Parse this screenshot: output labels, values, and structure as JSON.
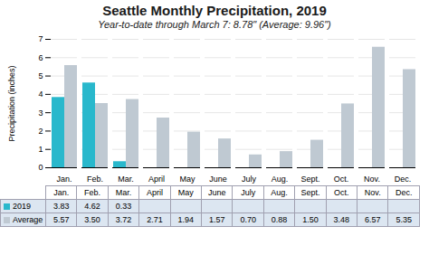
{
  "chart_data": {
    "type": "bar",
    "title": "Seattle Monthly Precipitation, 2019",
    "subtitle": "Year-to-date through March 7: 8.78\" (Average: 9.96\")",
    "categories": [
      "Jan.",
      "Feb.",
      "Mar.",
      "April",
      "May",
      "June",
      "July",
      "Aug.",
      "Sept.",
      "Oct.",
      "Nov.",
      "Dec."
    ],
    "series": [
      {
        "name": "2019",
        "color": "#29b8cc",
        "values": [
          3.83,
          4.62,
          0.33,
          null,
          null,
          null,
          null,
          null,
          null,
          null,
          null,
          null
        ],
        "value_labels": [
          "3.83",
          "4.62",
          "0.33",
          null,
          null,
          null,
          null,
          null,
          null,
          null,
          null,
          null
        ]
      },
      {
        "name": "Average",
        "color": "#bfc9d2",
        "values": [
          5.57,
          3.5,
          3.72,
          2.71,
          1.94,
          1.57,
          0.7,
          0.88,
          1.5,
          3.48,
          6.57,
          5.35
        ],
        "value_labels": [
          "5.57",
          "3.50",
          "3.72",
          "2.71",
          "1.94",
          "1.57",
          "0.70",
          "0.88",
          "1.50",
          "3.48",
          "6.57",
          "5.35"
        ]
      }
    ],
    "ylabel": "Precipitation (inches)",
    "ylim": [
      0,
      7
    ],
    "yticks": [
      0,
      1,
      2,
      3,
      4,
      5,
      6,
      7
    ],
    "grid": true
  }
}
